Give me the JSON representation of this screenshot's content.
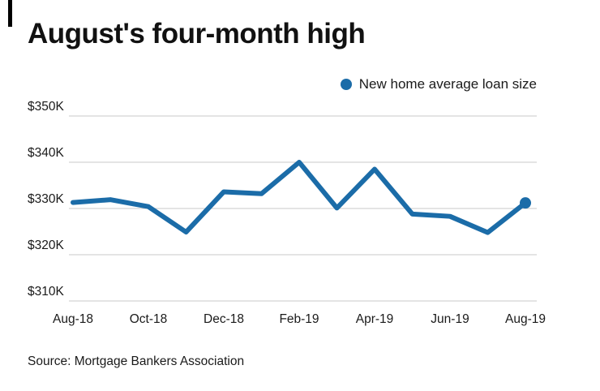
{
  "source": "Source: Mortgage Bankers Association",
  "chart_data": {
    "type": "line",
    "title": "August's four-month high",
    "x": [
      "Aug-18",
      "Sep-18",
      "Oct-18",
      "Nov-18",
      "Dec-18",
      "Jan-19",
      "Feb-19",
      "Mar-19",
      "Apr-19",
      "May-19",
      "Jun-19",
      "Jul-19",
      "Aug-19"
    ],
    "series": [
      {
        "name": "New home average loan size",
        "values": [
          331.3,
          331.9,
          330.4,
          324.9,
          333.6,
          333.2,
          340.0,
          330.1,
          338.5,
          328.8,
          328.3,
          324.8,
          331.2
        ]
      }
    ],
    "unit": "USD thousands",
    "ytick_values": [
      350,
      340,
      330,
      320,
      310
    ],
    "ytick_labels": [
      "$350K",
      "$340K",
      "$330K",
      "$320K",
      "$310K"
    ],
    "xtick_labels": [
      "Aug-18",
      "Oct-18",
      "Dec-18",
      "Feb-19",
      "Apr-19",
      "Jun-19",
      "Aug-19"
    ],
    "ylim": [
      310,
      350
    ],
    "grid": true,
    "legend_position": "top-right",
    "line_color": "#1b6ca8",
    "grid_color": "#c9c9c9"
  }
}
